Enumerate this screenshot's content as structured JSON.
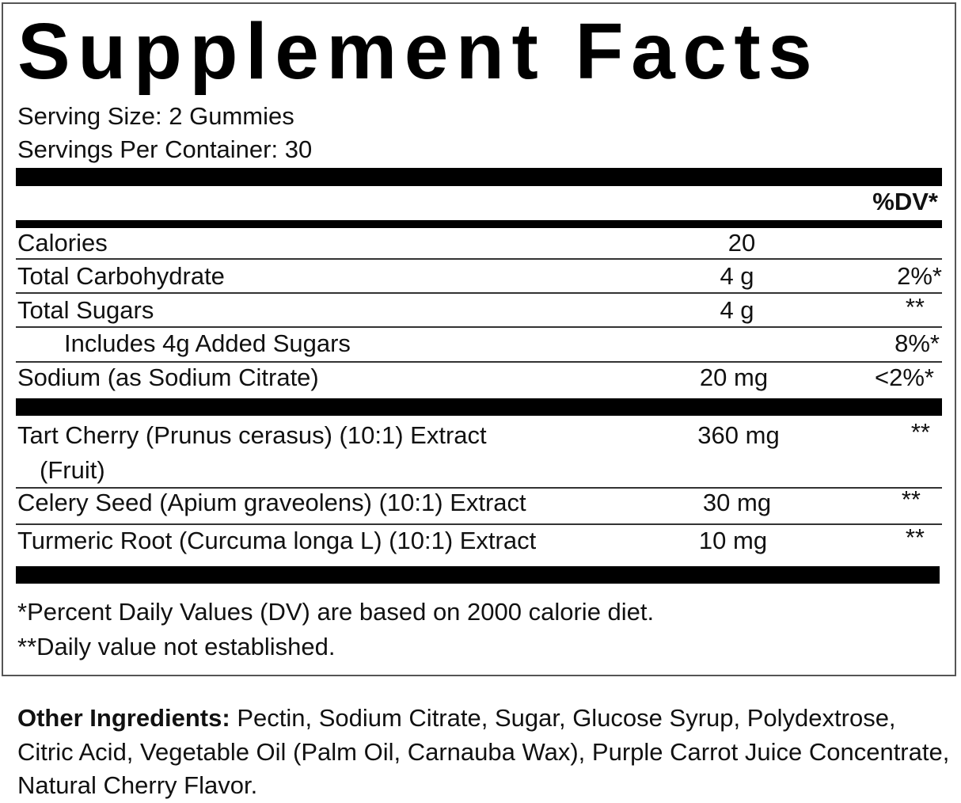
{
  "title": "Supplement Facts",
  "serving_size": "Serving Size: 2 Gummies",
  "servings_per_container": "Servings Per Container: 30",
  "dv_header": "%DV*",
  "nutrients": [
    {
      "name": "Calories",
      "amount": "20",
      "dv": ""
    },
    {
      "name": "Total Carbohydrate",
      "amount": "4 g",
      "dv": "2%*"
    },
    {
      "name": "Total Sugars",
      "amount": "4 g",
      "dv": "**"
    },
    {
      "name": "Includes 4g Added Sugars",
      "amount": "",
      "dv": "8%*"
    },
    {
      "name": "Sodium (as Sodium Citrate)",
      "amount": "20 mg",
      "dv": "<2%*"
    }
  ],
  "ingredients": [
    {
      "name": "Tart Cherry (Prunus cerasus) (10:1) Extract",
      "name_cont": "(Fruit)",
      "amount": "360 mg",
      "dv": "**"
    },
    {
      "name": "Celery Seed (Apium graveolens)  (10:1) Extract",
      "amount": "30 mg",
      "dv": "**"
    },
    {
      "name": "Turmeric Root (Curcuma longa L)  (10:1) Extract",
      "amount": "10 mg",
      "dv": "**"
    }
  ],
  "footnotes": [
    "*Percent Daily Values (DV) are based on 2000 calorie diet.",
    "**Daily value not established."
  ],
  "other_ingredients": {
    "label": "Other Ingredients:",
    "text": " Pectin, Sodium Citrate, Sugar, Glucose Syrup, Polydextrose, Citric Acid, Vegetable Oil (Palm Oil, Carnauba Wax), Purple Carrot Juice Concentrate, Natural Cherry Flavor."
  }
}
